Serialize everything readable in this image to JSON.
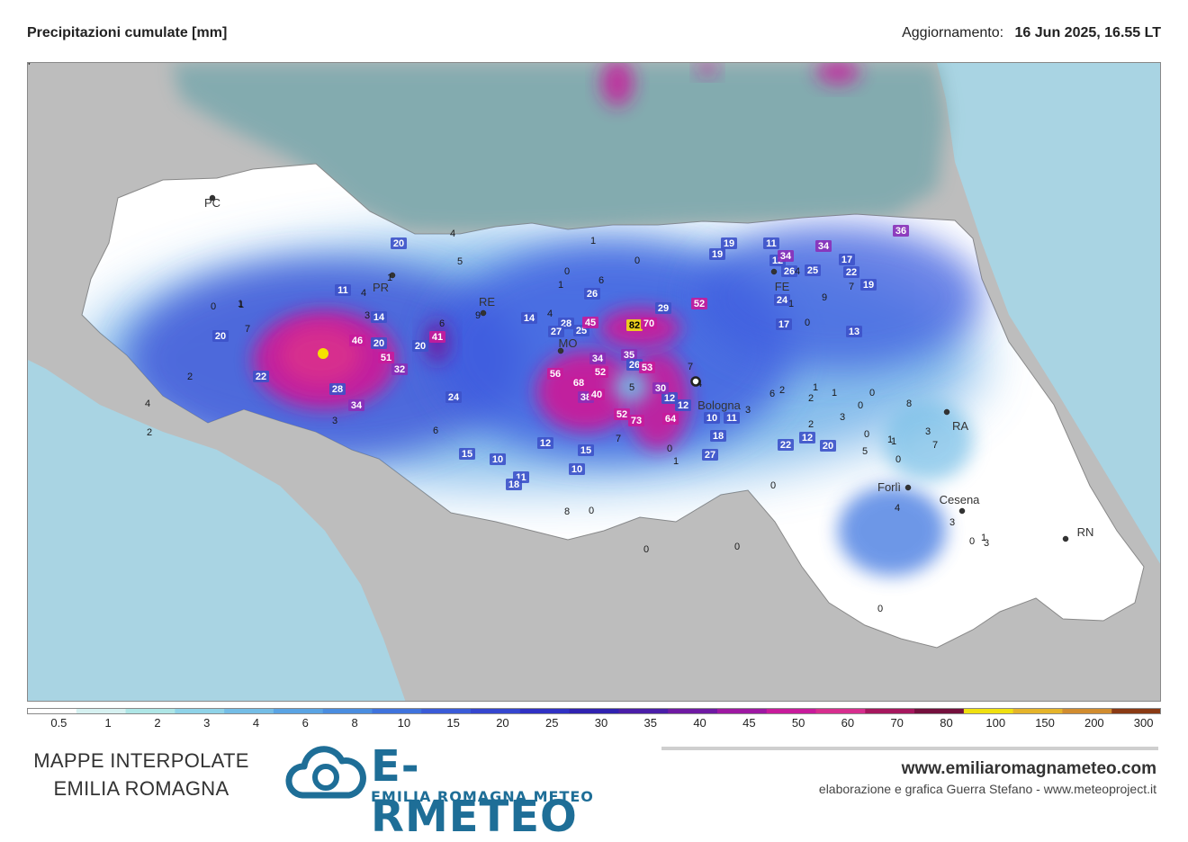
{
  "header": {
    "title": "Precipitazioni cumulate [mm]",
    "update_label": "Aggiornamento:",
    "update_value": "16 Jun 2025, 16.55 LT"
  },
  "map": {
    "cities": [
      {
        "label": "PC"
      },
      {
        "label": "PR"
      },
      {
        "label": "RE"
      },
      {
        "label": "MO"
      },
      {
        "label": "Bologna"
      },
      {
        "label": "FE"
      },
      {
        "label": "RA"
      },
      {
        "label": "Forlì"
      },
      {
        "label": "Cesena"
      },
      {
        "label": "RN"
      }
    ],
    "station_values": [
      "20",
      "11",
      "2",
      "1",
      "6",
      "4",
      "3",
      "14",
      "0",
      "1",
      "7",
      "20",
      "46",
      "20",
      "51",
      "32",
      "22",
      "28",
      "34",
      "3",
      "2",
      "4",
      "41",
      "20",
      "24",
      "6",
      "5",
      "4",
      "9",
      "1",
      "14",
      "4",
      "28",
      "27",
      "25",
      "45",
      "82",
      "70",
      "52",
      "29",
      "6",
      "26",
      "1",
      "0",
      "0",
      "1",
      "56",
      "68",
      "52",
      "34",
      "35",
      "26",
      "53",
      "38",
      "40",
      "52",
      "73",
      "64",
      "12",
      "12",
      "30",
      "0",
      "5",
      "4",
      "7",
      "19",
      "19",
      "11",
      "12",
      "34",
      "26",
      "4",
      "25",
      "34",
      "36",
      "17",
      "22",
      "7",
      "19",
      "24",
      "17",
      "9",
      "13",
      "0",
      "1",
      "3",
      "7",
      "4",
      "22",
      "12",
      "20",
      "12",
      "15",
      "10",
      "11",
      "18",
      "10",
      "15",
      "7",
      "1",
      "8",
      "0",
      "0",
      "0",
      "0",
      "0",
      "0",
      "3",
      "1",
      "3",
      "1",
      "27",
      "10",
      "18",
      "11",
      "3",
      "6",
      "2",
      "2",
      "2",
      "1",
      "1",
      "1",
      "0",
      "0",
      "0",
      "3",
      "0",
      "5",
      "8",
      "4"
    ],
    "colors": {
      "sea": "#a9d4e3",
      "land_outside": "#b9b9b9",
      "region": "#ffffff",
      "max_marker": "#f5e100"
    }
  },
  "legend": {
    "labels": [
      "0.5",
      "1",
      "2",
      "3",
      "4",
      "6",
      "8",
      "10",
      "15",
      "20",
      "25",
      "30",
      "35",
      "40",
      "45",
      "50",
      "60",
      "70",
      "80",
      "100",
      "150",
      "200",
      "300"
    ],
    "colors": [
      "#ffffff",
      "#d6f1f1",
      "#aee6e6",
      "#8fd3e8",
      "#74bde6",
      "#5aa4e4",
      "#4a8de0",
      "#3f73dd",
      "#3a5bd8",
      "#3546cf",
      "#3031c4",
      "#3022b0",
      "#4a1ea8",
      "#6f1aa3",
      "#9e18a2",
      "#c81b9b",
      "#d72e8e",
      "#a6175e",
      "#74103d",
      "#f0e010",
      "#e5b42a",
      "#d18c2f",
      "#8a3a14"
    ]
  },
  "footer": {
    "left_line1": "MAPPE INTERPOLATE",
    "left_line2": "EMILIA ROMAGNA",
    "brand": "E-RMETEO",
    "brand_sub": "EMILIA ROMAGNA METEO",
    "website": "www.emiliaromagnameteo.com",
    "credit": "elaborazione e grafica Guerra Stefano - www.meteoproject.it"
  }
}
